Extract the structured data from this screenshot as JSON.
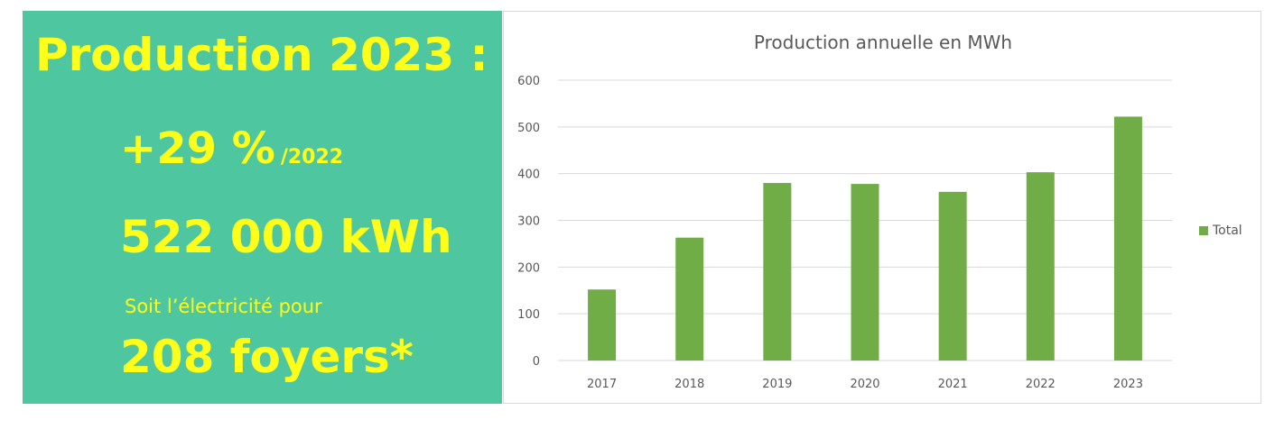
{
  "panel": {
    "headline": "Production 2023 :",
    "growth_value": "+29 %",
    "growth_ref": "/2022",
    "energy": "522 000 kWh",
    "equivalent_label": "Soit l’électricité pour",
    "households": "208 foyers*"
  },
  "colors": {
    "panel_bg": "#4ec7a0",
    "panel_text": "#ffff1a",
    "bar": "#70ad47",
    "grid": "#d9d9d9",
    "axis_text": "#595959"
  },
  "chart_data": {
    "type": "bar",
    "title": "Production annuelle en MWh",
    "categories": [
      "2017",
      "2018",
      "2019",
      "2020",
      "2021",
      "2022",
      "2023"
    ],
    "series": [
      {
        "name": "Total",
        "values": [
          152,
          263,
          380,
          378,
          361,
          403,
          522
        ]
      }
    ],
    "ylim": [
      0,
      600
    ],
    "yticks": [
      0,
      100,
      200,
      300,
      400,
      500,
      600
    ],
    "grid": true,
    "legend": "right"
  }
}
